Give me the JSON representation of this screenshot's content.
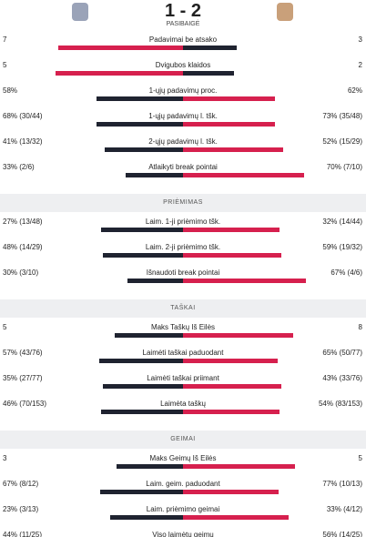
{
  "header": {
    "score": "1 - 2",
    "status": "PASIBAIGĖ"
  },
  "sections": [
    {
      "rows": [
        {
          "label": "Padavimai be atsako",
          "home": 7,
          "away": 3
        },
        {
          "label": "Dvigubos klaidos",
          "home": 5,
          "away": 2
        },
        {
          "label": "1-ųjų padavimų proc.",
          "home": {
            "value": 58,
            "label": "58%"
          },
          "away": {
            "value": 62,
            "label": "62%"
          }
        },
        {
          "label": "1-ųjų padavimų l. tšk.",
          "home": {
            "value": 68,
            "label": "68% (30/44)"
          },
          "away": {
            "value": 73,
            "label": "73% (35/48)"
          }
        },
        {
          "label": "2-ųjų padavimų l. tšk.",
          "home": {
            "value": 41,
            "label": "41% (13/32)"
          },
          "away": {
            "value": 52,
            "label": "52% (15/29)"
          }
        },
        {
          "label": "Atlaikyti break pointai",
          "home": {
            "value": 33,
            "label": "33% (2/6)"
          },
          "away": {
            "value": 70,
            "label": "70% (7/10)"
          }
        }
      ]
    },
    {
      "title": "PRIĖMIMAS",
      "rows": [
        {
          "label": "Laim. 1-ji priėmimo tšk.",
          "home": {
            "value": 27,
            "label": "27% (13/48)"
          },
          "away": {
            "value": 32,
            "label": "32% (14/44)"
          }
        },
        {
          "label": "Laim. 2-ji priėmimo tšk.",
          "home": {
            "value": 48,
            "label": "48% (14/29)"
          },
          "away": {
            "value": 59,
            "label": "59% (19/32)"
          }
        },
        {
          "label": "Išnaudoti break pointai",
          "home": {
            "value": 30,
            "label": "30% (3/10)"
          },
          "away": {
            "value": 67,
            "label": "67% (4/6)"
          }
        }
      ]
    },
    {
      "title": "TAŠKAI",
      "rows": [
        {
          "label": "Maks Taškų Iš Eilės",
          "home": 5,
          "away": 8
        },
        {
          "label": "Laimėti taškai paduodant",
          "home": {
            "value": 57,
            "label": "57% (43/76)"
          },
          "away": {
            "value": 65,
            "label": "65% (50/77)"
          }
        },
        {
          "label": "Laimėti taškai priimant",
          "home": {
            "value": 35,
            "label": "35% (27/77)"
          },
          "away": {
            "value": 43,
            "label": "43% (33/76)"
          }
        },
        {
          "label": "Laimėta taškų",
          "home": {
            "value": 46,
            "label": "46% (70/153)"
          },
          "away": {
            "value": 54,
            "label": "54% (83/153)"
          }
        }
      ]
    },
    {
      "title": "GEIMAI",
      "rows": [
        {
          "label": "Maks Geimų Iš Eilės",
          "home": 3,
          "away": 5
        },
        {
          "label": "Laim. geim. paduodant",
          "home": {
            "value": 67,
            "label": "67% (8/12)"
          },
          "away": {
            "value": 77,
            "label": "77% (10/13)"
          }
        },
        {
          "label": "Laim. priėmimo geimai",
          "home": {
            "value": 23,
            "label": "23% (3/13)"
          },
          "away": {
            "value": 33,
            "label": "33% (4/12)"
          }
        },
        {
          "label": "Viso laimėtų geimų",
          "home": {
            "value": 44,
            "label": "44% (11/25)"
          },
          "away": {
            "value": 56,
            "label": "56% (14/25)"
          }
        }
      ]
    }
  ]
}
